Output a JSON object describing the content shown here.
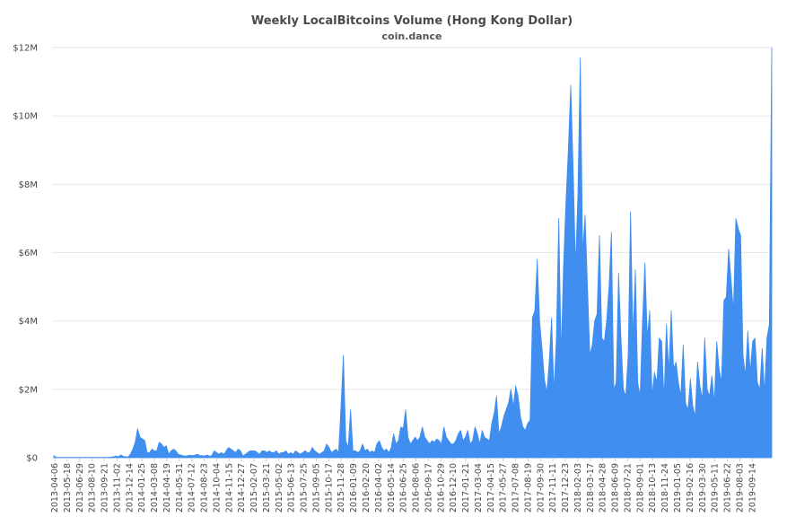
{
  "chart_data": {
    "type": "area",
    "title": "Weekly LocalBitcoins Volume (Hong Kong Dollar)",
    "subtitle": "coin.dance",
    "xlabel": "",
    "ylabel": "",
    "ylim": [
      0,
      12000000
    ],
    "y_ticks": [
      {
        "value": 0,
        "label": "$0"
      },
      {
        "value": 2000000,
        "label": "$2M"
      },
      {
        "value": 4000000,
        "label": "$4M"
      },
      {
        "value": 6000000,
        "label": "$6M"
      },
      {
        "value": 8000000,
        "label": "$8M"
      },
      {
        "value": 10000000,
        "label": "$10M"
      },
      {
        "value": 12000000,
        "label": "$12M"
      }
    ],
    "x_tick_labels": [
      "2013-04-06",
      "2013-05-18",
      "2013-06-29",
      "2013-08-10",
      "2013-09-21",
      "2013-11-02",
      "2013-12-14",
      "2014-01-25",
      "2014-03-08",
      "2014-04-19",
      "2014-05-31",
      "2014-07-12",
      "2014-08-23",
      "2014-10-04",
      "2014-11-15",
      "2014-12-27",
      "2015-02-07",
      "2015-03-21",
      "2015-05-02",
      "2015-06-13",
      "2015-07-25",
      "2015-09-05",
      "2015-10-17",
      "2015-11-28",
      "2016-01-09",
      "2016-02-20",
      "2016-04-02",
      "2016-05-14",
      "2016-06-25",
      "2016-08-06",
      "2016-09-17",
      "2016-10-29",
      "2016-12-10",
      "2017-01-21",
      "2017-03-04",
      "2017-04-15",
      "2017-05-27",
      "2017-07-08",
      "2017-08-19",
      "2017-09-30",
      "2017-11-11",
      "2017-12-23",
      "2018-02-03",
      "2018-03-17",
      "2018-04-28",
      "2018-06-09",
      "2018-07-21",
      "2018-09-01",
      "2018-10-13",
      "2018-11-24",
      "2019-01-05",
      "2019-02-16",
      "2019-03-30",
      "2019-05-11",
      "2019-06-22",
      "2019-08-03",
      "2019-09-14"
    ],
    "grid": true,
    "legend": "none",
    "color": "#3f8ef0",
    "series": [
      {
        "values": [
          60000,
          10000,
          10000,
          10000,
          10000,
          10000,
          10000,
          10000,
          10000,
          10000,
          10000,
          10000,
          10000,
          10000,
          10000,
          10000,
          10000,
          10000,
          10000,
          10000,
          10000,
          10000,
          10000,
          10000,
          20000,
          30000,
          50000,
          30000,
          80000,
          40000,
          30000,
          20000,
          100000,
          250000,
          450000,
          850000,
          600000,
          550000,
          500000,
          150000,
          150000,
          250000,
          200000,
          200000,
          450000,
          400000,
          300000,
          350000,
          100000,
          200000,
          250000,
          200000,
          100000,
          80000,
          60000,
          50000,
          60000,
          70000,
          60000,
          80000,
          100000,
          60000,
          60000,
          50000,
          80000,
          50000,
          60000,
          200000,
          150000,
          100000,
          150000,
          100000,
          200000,
          300000,
          250000,
          200000,
          150000,
          250000,
          200000,
          50000,
          100000,
          150000,
          200000,
          200000,
          200000,
          150000,
          100000,
          200000,
          200000,
          150000,
          200000,
          150000,
          150000,
          200000,
          100000,
          150000,
          150000,
          200000,
          100000,
          150000,
          100000,
          200000,
          150000,
          100000,
          150000,
          200000,
          150000,
          150000,
          300000,
          200000,
          150000,
          100000,
          150000,
          200000,
          400000,
          300000,
          150000,
          200000,
          250000,
          150000,
          1500000,
          3000000,
          500000,
          300000,
          1400000,
          200000,
          200000,
          150000,
          200000,
          400000,
          200000,
          250000,
          150000,
          200000,
          150000,
          400000,
          500000,
          300000,
          200000,
          250000,
          150000,
          300000,
          700000,
          400000,
          500000,
          900000,
          850000,
          1400000,
          600000,
          400000,
          500000,
          600000,
          500000,
          600000,
          900000,
          600000,
          500000,
          400000,
          500000,
          450000,
          550000,
          500000,
          400000,
          900000,
          600000,
          500000,
          400000,
          400000,
          500000,
          700000,
          800000,
          500000,
          600000,
          800000,
          400000,
          500000,
          900000,
          700000,
          400000,
          800000,
          600000,
          550000,
          500000,
          1000000,
          1300000,
          1800000,
          700000,
          900000,
          1200000,
          1400000,
          1600000,
          2000000,
          1500000,
          2100000,
          1800000,
          1200000,
          900000,
          800000,
          1000000,
          1100000,
          4100000,
          4300000,
          5800000,
          4000000,
          3200000,
          2300000,
          1900000,
          2800000,
          4100000,
          1900000,
          3500000,
          7000000,
          3000000,
          5600000,
          7500000,
          9000000,
          10900000,
          8500000,
          5600000,
          7700000,
          11700000,
          6000000,
          7100000,
          5000000,
          3000000,
          3300000,
          4000000,
          4200000,
          6500000,
          3500000,
          3400000,
          4000000,
          5000000,
          6600000,
          2000000,
          2200000,
          5400000,
          3500000,
          2000000,
          1800000,
          3000000,
          7200000,
          3500000,
          5500000,
          2200000,
          1800000,
          4000000,
          5700000,
          3500000,
          4300000,
          1800000,
          2500000,
          2200000,
          3500000,
          3400000,
          1700000,
          3900000,
          2500000,
          4300000,
          2600000,
          2800000,
          2200000,
          1800000,
          3300000,
          1600000,
          1400000,
          2300000,
          1500000,
          1200000,
          2800000,
          2100000,
          1700000,
          3500000,
          2000000,
          1800000,
          2400000,
          1600000,
          3400000,
          2600000,
          2200000,
          4600000,
          4700000,
          6100000,
          5200000,
          4300000,
          7000000,
          6700000,
          6500000,
          3000000,
          2400000,
          3700000,
          2500000,
          3400000,
          3500000,
          2200000,
          2000000,
          3200000,
          1900000,
          3500000,
          3900000,
          12000000
        ]
      }
    ]
  }
}
